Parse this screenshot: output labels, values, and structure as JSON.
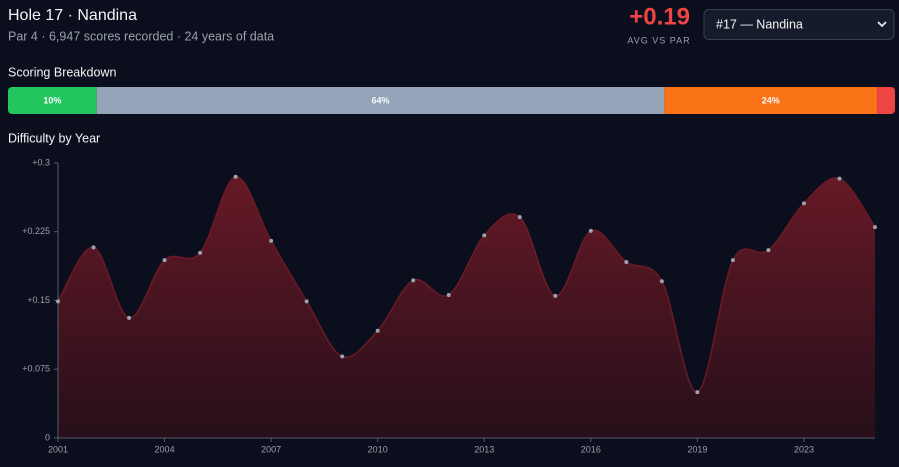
{
  "header": {
    "title": "Hole 17 · Nandina",
    "subtitle": "Par 4 · 6,947 scores recorded · 24 years of data",
    "stat": "+0.19",
    "stat_label": "AVG VS PAR",
    "select": "#17 — Nandina"
  },
  "chart_data": [
    {
      "type": "stacked-bar",
      "title": "Scoring Breakdown",
      "values": [
        10,
        64,
        24,
        2
      ],
      "value_labels": [
        "10%",
        "64%",
        "24%",
        null
      ],
      "colors": [
        "#22c55e",
        "#94a3b8",
        "#f97316",
        "#ef4444"
      ]
    },
    {
      "type": "area",
      "title": "Difficulty by Year",
      "categories": [
        "2001",
        null,
        null,
        "2004",
        null,
        null,
        "2007",
        null,
        null,
        "2010",
        null,
        null,
        "2013",
        null,
        null,
        "2016",
        null,
        null,
        "2019",
        null,
        null,
        "2023",
        null,
        null
      ],
      "values": [
        0.149,
        0.208,
        0.131,
        0.194,
        0.202,
        0.285,
        0.215,
        0.149,
        0.089,
        0.117,
        0.172,
        0.156,
        0.221,
        0.241,
        0.155,
        0.226,
        0.192,
        0.171,
        0.05,
        0.194,
        0.205,
        0.256,
        0.283,
        0.23
      ],
      "ylim": [
        0,
        0.3
      ],
      "yticks": [
        0,
        {
          "value": 0.075,
          "label": "+0.075"
        },
        {
          "value": 0.15,
          "label": "+0.15"
        },
        {
          "value": 0.225,
          "label": "+0.225"
        },
        {
          "value": 0.3,
          "label": "+0.3"
        }
      ],
      "color": "#6b1a26"
    }
  ]
}
